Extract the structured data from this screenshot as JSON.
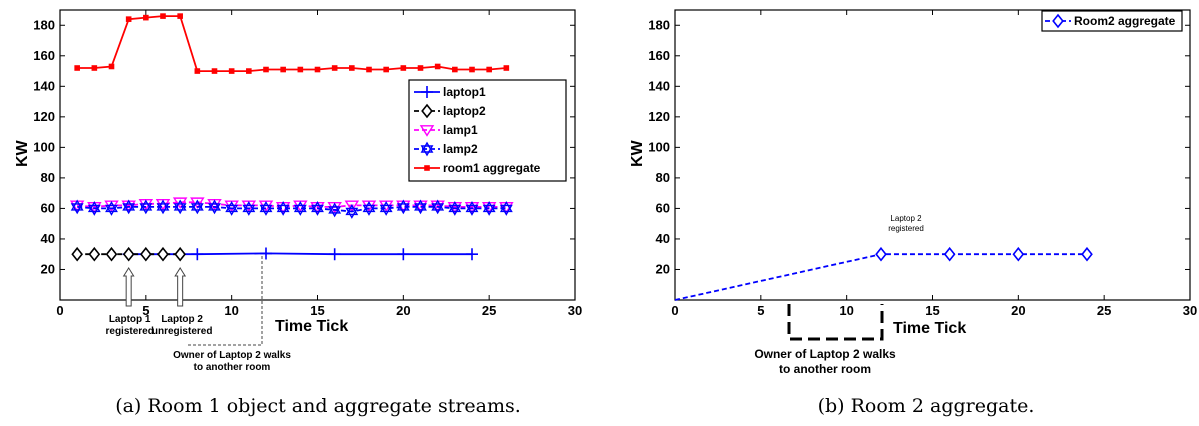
{
  "chart_data": [
    {
      "type": "line",
      "caption": "(a) Room 1 object and aggregate streams.",
      "xlabel": "Time Tick",
      "ylabel": "KW",
      "xlim": [
        0,
        30
      ],
      "ylim": [
        0,
        190
      ],
      "xticks": [
        0,
        5,
        10,
        15,
        20,
        25,
        30
      ],
      "yticks": [
        20,
        40,
        60,
        80,
        100,
        120,
        140,
        160,
        180
      ],
      "grid": false,
      "legend_position": "right",
      "series": [
        {
          "name": "laptop1",
          "color": "#0000ff",
          "marker": "plus",
          "linestyle": "solid",
          "x": [
            4,
            8,
            12,
            16,
            20,
            24
          ],
          "y": [
            30,
            30,
            30.5,
            30,
            30,
            30
          ]
        },
        {
          "name": "laptop2",
          "color": "#000000",
          "marker": "diamond",
          "linestyle": "dashed",
          "x": [
            1,
            2,
            3,
            4,
            5,
            6,
            7
          ],
          "y": [
            30,
            30,
            30,
            30,
            30,
            30,
            30
          ]
        },
        {
          "name": "lamp1",
          "color": "#ff00ff",
          "marker": "triangle-down",
          "linestyle": "dashed",
          "x": [
            1,
            2,
            3,
            4,
            5,
            6,
            7,
            8,
            9,
            10,
            11,
            12,
            13,
            14,
            15,
            16,
            17,
            18,
            19,
            20,
            21,
            22,
            23,
            24,
            25,
            26
          ],
          "y": [
            62,
            61,
            62,
            62,
            63,
            63,
            64,
            64,
            63,
            62,
            62,
            62,
            61,
            62,
            61,
            61,
            62,
            62,
            62,
            62,
            62,
            62,
            61,
            61,
            61,
            61
          ]
        },
        {
          "name": "lamp2",
          "color": "#0000ff",
          "marker": "hexagram",
          "linestyle": "dashed",
          "x": [
            1,
            2,
            3,
            4,
            5,
            6,
            7,
            8,
            9,
            10,
            11,
            12,
            13,
            14,
            15,
            16,
            17,
            18,
            19,
            20,
            21,
            22,
            23,
            24,
            25,
            26
          ],
          "y": [
            61,
            60,
            60,
            61,
            61,
            61,
            61,
            61,
            61,
            60,
            60,
            60,
            60,
            60,
            60,
            59,
            58,
            60,
            60,
            61,
            61,
            61,
            60,
            60,
            60,
            60
          ]
        },
        {
          "name": "room1 aggregate",
          "color": "#ff0000",
          "marker": "square",
          "linestyle": "solid",
          "x": [
            1,
            2,
            3,
            4,
            5,
            6,
            7,
            8,
            9,
            10,
            11,
            12,
            13,
            14,
            15,
            16,
            17,
            18,
            19,
            20,
            21,
            22,
            23,
            24,
            25,
            26
          ],
          "y": [
            152,
            152,
            153,
            184,
            185,
            186,
            186,
            150,
            150,
            150,
            150,
            151,
            151,
            151,
            151,
            152,
            152,
            151,
            151,
            152,
            152,
            153,
            151,
            151,
            151,
            152
          ]
        }
      ],
      "annotations": [
        {
          "text": [
            "Laptop 1",
            "registered"
          ],
          "x": 4
        },
        {
          "text": [
            "Laptop 2",
            "unregistered"
          ],
          "x": 7
        },
        {
          "text": [
            "Owner of Laptop 2 walks",
            "to another room"
          ]
        }
      ]
    },
    {
      "type": "line",
      "caption": "(b) Room 2 aggregate.",
      "xlabel": "Time Tick",
      "ylabel": "KW",
      "xlim": [
        0,
        30
      ],
      "ylim": [
        0,
        190
      ],
      "xticks": [
        0,
        5,
        10,
        15,
        20,
        25,
        30
      ],
      "yticks": [
        20,
        40,
        60,
        80,
        100,
        120,
        140,
        160,
        180
      ],
      "grid": false,
      "legend_position": "top-right",
      "series": [
        {
          "name": "Room2 aggregate",
          "color": "#0000ff",
          "marker": "diamond",
          "linestyle": "dashed",
          "x": [
            0,
            12,
            16,
            20,
            24
          ],
          "y": [
            0,
            30,
            30,
            30,
            30
          ]
        }
      ],
      "annotations": [
        {
          "text": [
            "Laptop 2",
            "registered"
          ],
          "x": 12
        },
        {
          "text": [
            "Owner of Laptop 2 walks",
            "to another room"
          ]
        }
      ]
    }
  ]
}
